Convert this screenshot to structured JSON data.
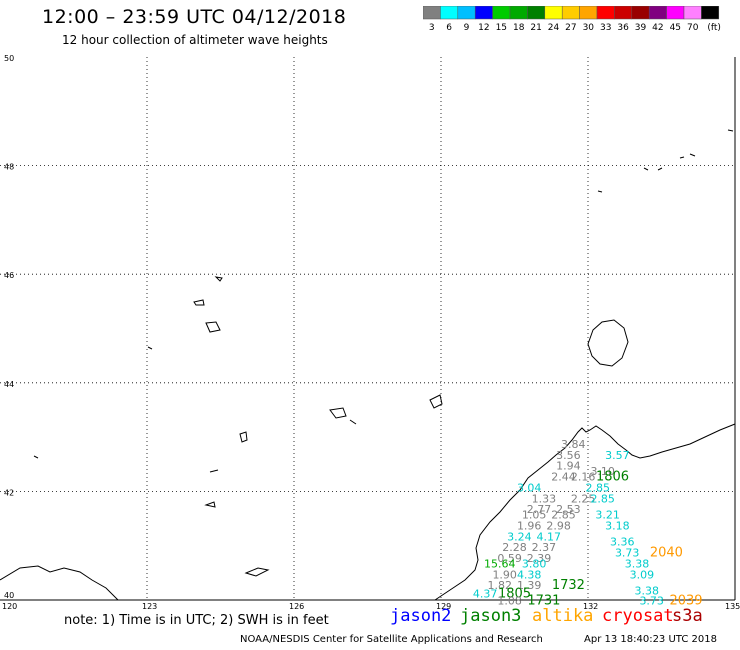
{
  "header": {
    "title": "12:00 – 23:59 UTC 04/12/2018",
    "subtitle": "12 hour collection of altimeter wave heights"
  },
  "color_scale": {
    "colors": [
      "#808080",
      "#00ffff",
      "#00bfff",
      "#0000ff",
      "#00cc00",
      "#00aa00",
      "#008000",
      "#ffff00",
      "#ffcc00",
      "#ffa500",
      "#ff0000",
      "#cc0000",
      "#990000",
      "#800080",
      "#ff00ff",
      "#ff80ff",
      "#000000"
    ],
    "labels": [
      "3",
      "6",
      "9",
      "12",
      "15",
      "18",
      "21",
      "24",
      "27",
      "30",
      "33",
      "36",
      "39",
      "42",
      "45",
      "70",
      "(ft)"
    ]
  },
  "axes": {
    "lon_labels": [
      "120",
      "123",
      "126",
      "129",
      "132",
      "135"
    ],
    "lat_labels": [
      "50",
      "48",
      "46",
      "44",
      "42",
      "40"
    ]
  },
  "observations": [
    {
      "text": "3.84",
      "color": "#808080",
      "lon": 131.7,
      "lat": 42.8
    },
    {
      "text": "3.56",
      "color": "#808080",
      "lon": 131.6,
      "lat": 42.6
    },
    {
      "text": "3.57",
      "color": "#00cccc",
      "lon": 132.6,
      "lat": 42.6
    },
    {
      "text": "1.94",
      "color": "#808080",
      "lon": 131.6,
      "lat": 42.4
    },
    {
      "text": "3.10",
      "color": "#808080",
      "lon": 132.3,
      "lat": 42.3
    },
    {
      "text": "1806",
      "color": "#008000",
      "lon": 132.5,
      "lat": 42.2
    },
    {
      "text": "2.44",
      "color": "#808080",
      "lon": 131.5,
      "lat": 42.2
    },
    {
      "text": "2.16",
      "color": "#808080",
      "lon": 131.9,
      "lat": 42.2
    },
    {
      "text": "3.04",
      "color": "#00cccc",
      "lon": 130.8,
      "lat": 42.0
    },
    {
      "text": "2.85",
      "color": "#00cccc",
      "lon": 132.2,
      "lat": 42.0
    },
    {
      "text": "1.33",
      "color": "#808080",
      "lon": 131.1,
      "lat": 41.8
    },
    {
      "text": "2.25",
      "color": "#808080",
      "lon": 131.9,
      "lat": 41.8
    },
    {
      "text": "2.85",
      "color": "#00cccc",
      "lon": 132.3,
      "lat": 41.8
    },
    {
      "text": "2.77",
      "color": "#808080",
      "lon": 131.0,
      "lat": 41.6
    },
    {
      "text": "2.53",
      "color": "#808080",
      "lon": 131.6,
      "lat": 41.6
    },
    {
      "text": "3.21",
      "color": "#00cccc",
      "lon": 132.4,
      "lat": 41.5
    },
    {
      "text": "1.05",
      "color": "#808080",
      "lon": 130.9,
      "lat": 41.5
    },
    {
      "text": "2.85",
      "color": "#808080",
      "lon": 131.5,
      "lat": 41.5
    },
    {
      "text": "1.96",
      "color": "#808080",
      "lon": 130.8,
      "lat": 41.3
    },
    {
      "text": "2.98",
      "color": "#808080",
      "lon": 131.4,
      "lat": 41.3
    },
    {
      "text": "3.18",
      "color": "#00cccc",
      "lon": 132.6,
      "lat": 41.3
    },
    {
      "text": "3.24",
      "color": "#00cccc",
      "lon": 130.6,
      "lat": 41.1
    },
    {
      "text": "4.17",
      "color": "#00cccc",
      "lon": 131.2,
      "lat": 41.1
    },
    {
      "text": "3.36",
      "color": "#00cccc",
      "lon": 132.7,
      "lat": 41.0
    },
    {
      "text": "2.28",
      "color": "#808080",
      "lon": 130.5,
      "lat": 40.9
    },
    {
      "text": "2.37",
      "color": "#808080",
      "lon": 131.1,
      "lat": 40.9
    },
    {
      "text": "3.73",
      "color": "#00cccc",
      "lon": 132.8,
      "lat": 40.8
    },
    {
      "text": "2040",
      "color": "#ff9900",
      "lon": 133.6,
      "lat": 40.8
    },
    {
      "text": "0.59",
      "color": "#808080",
      "lon": 130.4,
      "lat": 40.7
    },
    {
      "text": "2.39",
      "color": "#808080",
      "lon": 131.0,
      "lat": 40.7
    },
    {
      "text": "15.64",
      "color": "#00aa00",
      "lon": 130.2,
      "lat": 40.6
    },
    {
      "text": "3.80",
      "color": "#00cccc",
      "lon": 130.9,
      "lat": 40.6
    },
    {
      "text": "3.38",
      "color": "#00cccc",
      "lon": 133.0,
      "lat": 40.6
    },
    {
      "text": "1.90",
      "color": "#808080",
      "lon": 130.3,
      "lat": 40.4
    },
    {
      "text": "4.38",
      "color": "#00cccc",
      "lon": 130.8,
      "lat": 40.4
    },
    {
      "text": "3.09",
      "color": "#00cccc",
      "lon": 133.1,
      "lat": 40.4
    },
    {
      "text": "1.82",
      "color": "#808080",
      "lon": 130.2,
      "lat": 40.2
    },
    {
      "text": "1.39",
      "color": "#808080",
      "lon": 130.8,
      "lat": 40.2
    },
    {
      "text": "1732",
      "color": "#008000",
      "lon": 131.6,
      "lat": 40.2
    },
    {
      "text": "4.37",
      "color": "#00cccc",
      "lon": 129.9,
      "lat": 40.05
    },
    {
      "text": "1805",
      "color": "#008000",
      "lon": 130.5,
      "lat": 40.05
    },
    {
      "text": "3.38",
      "color": "#00cccc",
      "lon": 133.2,
      "lat": 40.1
    },
    {
      "text": "1.08",
      "color": "#808080",
      "lon": 130.4,
      "lat": 39.92
    },
    {
      "text": "1731",
      "color": "#008000",
      "lon": 131.1,
      "lat": 39.92
    },
    {
      "text": "3.73",
      "color": "#00cccc",
      "lon": 133.3,
      "lat": 39.92
    },
    {
      "text": "2039",
      "color": "#ff9900",
      "lon": 134.0,
      "lat": 39.92
    }
  ],
  "footer": {
    "note": "note: 1) Time is in UTC; 2) SWH is in feet",
    "satellites": [
      {
        "name": "jason2",
        "color": "#0000ff"
      },
      {
        "name": "jason3",
        "color": "#008000"
      },
      {
        "name": "altika",
        "color": "#ffa500"
      },
      {
        "name": "cryosat",
        "color": "#ff0000"
      },
      {
        "name": "s3a",
        "color": "#aa0000"
      }
    ],
    "credit": "NOAA/NESDIS Center for Satellite Applications and Research",
    "timestamp": "Apr 13 18:40:23 UTC 2018"
  }
}
